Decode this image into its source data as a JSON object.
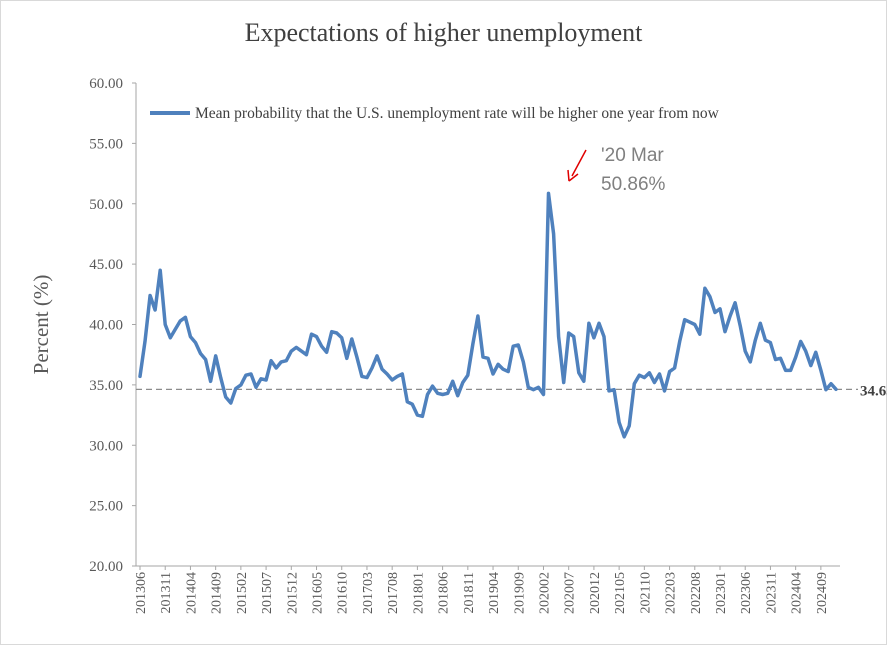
{
  "chart_data": {
    "type": "line",
    "title": "Expectations  of  higher  unemployment",
    "ylabel": "Percent (%)",
    "xlabel": "",
    "ylim": [
      20,
      60
    ],
    "yticks": [
      "20.00",
      "25.00",
      "30.00",
      "35.00",
      "40.00",
      "45.00",
      "50.00",
      "55.00",
      "60.00"
    ],
    "xticks": [
      "201306",
      "201311",
      "201404",
      "201409",
      "201502",
      "201507",
      "201512",
      "201605",
      "201610",
      "201703",
      "201708",
      "201801",
      "201806",
      "201811",
      "201904",
      "201909",
      "202002",
      "202007",
      "202012",
      "202105",
      "202110",
      "202203",
      "202208",
      "202301",
      "202306",
      "202311",
      "202404",
      "202409"
    ],
    "grid": false,
    "legend_position": "top",
    "series": [
      {
        "name": "Mean probability that the U.S. unemployment rate will be higher one year from now",
        "color": "#4f81bd",
        "start": "201306",
        "values": [
          35.7,
          38.6,
          42.4,
          41.2,
          44.5,
          40.0,
          38.9,
          39.6,
          40.3,
          40.6,
          39.0,
          38.5,
          37.6,
          37.1,
          35.3,
          37.4,
          35.6,
          34.0,
          33.5,
          34.7,
          35.0,
          35.8,
          35.9,
          34.8,
          35.5,
          35.4,
          37.0,
          36.4,
          36.9,
          37.0,
          37.8,
          38.1,
          37.8,
          37.5,
          39.2,
          39.0,
          38.2,
          37.7,
          39.4,
          39.3,
          38.9,
          37.2,
          38.8,
          37.3,
          35.7,
          35.6,
          36.4,
          37.4,
          36.3,
          35.9,
          35.4,
          35.7,
          35.9,
          33.6,
          33.4,
          32.5,
          32.4,
          34.2,
          34.9,
          34.3,
          34.2,
          34.3,
          35.3,
          34.1,
          35.2,
          35.8,
          38.4,
          40.7,
          37.3,
          37.2,
          35.9,
          36.7,
          36.3,
          36.1,
          38.2,
          38.3,
          36.9,
          34.8,
          34.6,
          34.8,
          34.2,
          50.86,
          47.5,
          39.0,
          35.2,
          39.3,
          39.0,
          36.0,
          35.3,
          40.1,
          38.9,
          40.1,
          39.0,
          34.5,
          34.6,
          31.9,
          30.7,
          31.6,
          35.1,
          35.8,
          35.6,
          36.0,
          35.2,
          35.9,
          34.5,
          36.1,
          36.4,
          38.6,
          40.4,
          40.2,
          40.0,
          39.2,
          43.0,
          42.3,
          41.0,
          41.3,
          39.4,
          40.7,
          41.8,
          39.9,
          37.8,
          36.9,
          38.7,
          40.1,
          38.7,
          38.5,
          37.1,
          37.2,
          36.2,
          36.2,
          37.3,
          38.6,
          37.8,
          36.6,
          37.7,
          36.2,
          34.6,
          35.1,
          34.63
        ]
      }
    ],
    "reference_line": {
      "value": 34.63,
      "label": "34.63",
      "style": "dashed"
    },
    "annotations": [
      {
        "line1": "'20 Mar",
        "line2": "50.86%",
        "target": "202003"
      }
    ],
    "colors": {
      "series": "#4f81bd",
      "annotation_arrow": "#e00000",
      "reference": "#8c8c8c"
    }
  }
}
